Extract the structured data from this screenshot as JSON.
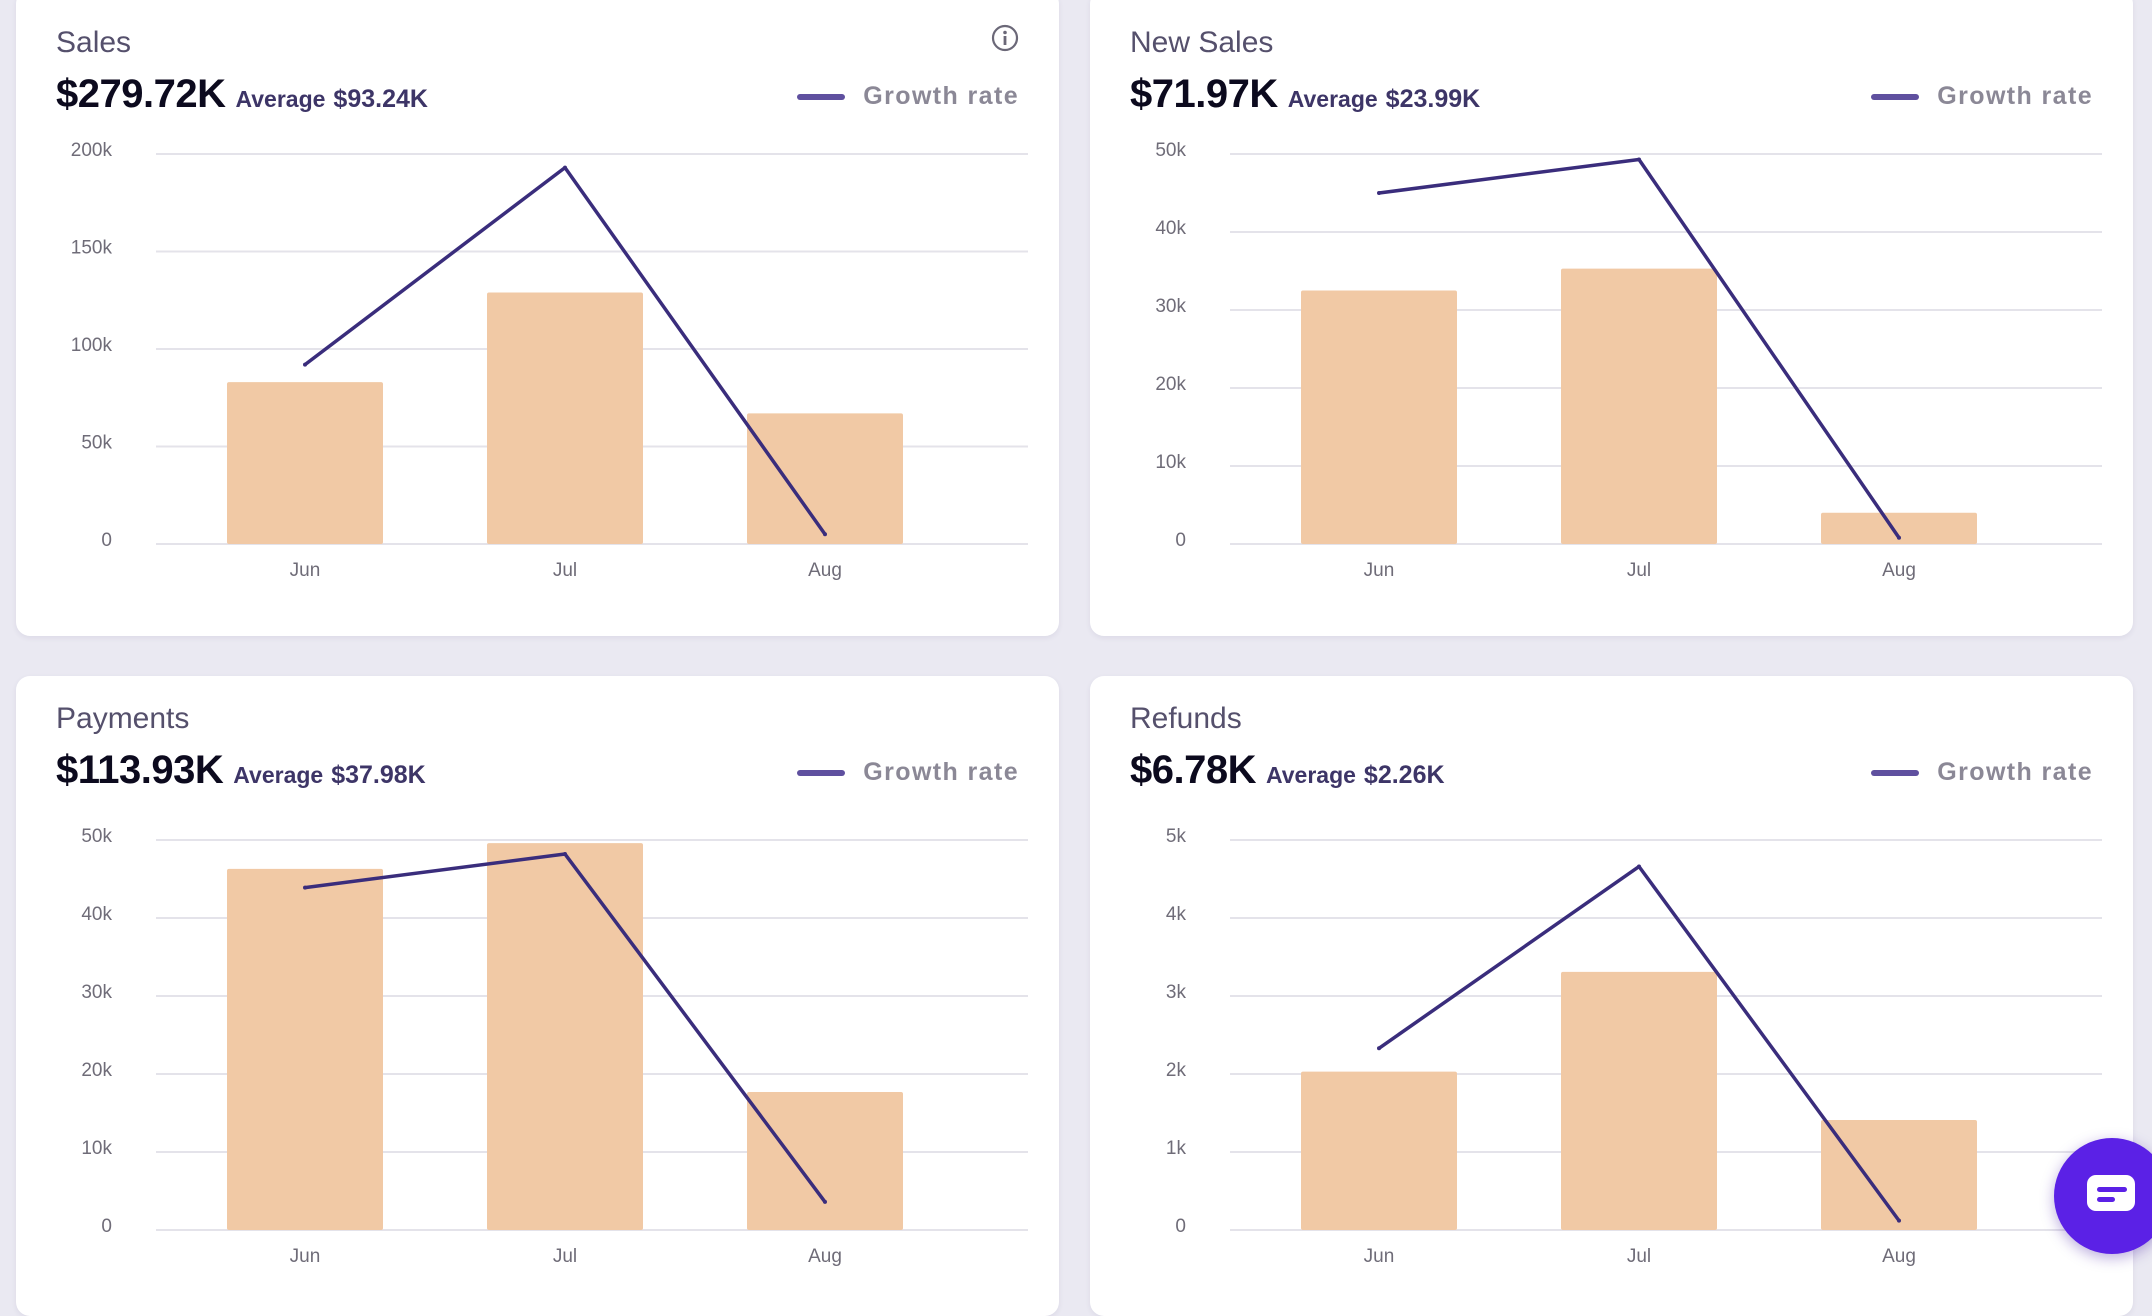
{
  "cards": [
    {
      "title": "Sales",
      "total": "$279.72K",
      "average_label": "Average",
      "average_value": "$93.24K",
      "legend": "Growth rate",
      "has_info_icon": true,
      "info_icon": "info-circle-icon"
    },
    {
      "title": "New Sales",
      "total": "$71.97K",
      "average_label": "Average",
      "average_value": "$23.99K",
      "legend": "Growth rate",
      "has_info_icon": false
    },
    {
      "title": "Payments",
      "total": "$113.93K",
      "average_label": "Average",
      "average_value": "$37.98K",
      "legend": "Growth rate",
      "has_info_icon": false
    },
    {
      "title": "Refunds",
      "total": "$6.78K",
      "average_label": "Average",
      "average_value": "$2.26K",
      "legend": "Growth rate",
      "has_info_icon": false
    }
  ],
  "chat_button": {
    "icon": "chat-bubble-icon"
  },
  "colors": {
    "bar": "#f1c9a5",
    "line": "#3a2d7c",
    "grid": "#e4e3ea",
    "tick": "#6f6c78",
    "chat": "#5b21e6"
  },
  "chart_data": [
    {
      "type": "bar",
      "categories": [
        "Jun",
        "Jul",
        "Aug"
      ],
      "ylim": [
        0,
        200000
      ],
      "yticks": [
        0,
        50000,
        100000,
        150000,
        200000
      ],
      "ytick_labels": [
        "0",
        "50k",
        "100k",
        "150k",
        "200k"
      ],
      "grid": true,
      "series": [
        {
          "name": "",
          "type": "bar",
          "values": [
            83000,
            129000,
            67000
          ]
        },
        {
          "name": "Growth rate",
          "type": "line",
          "values": [
            92000,
            193000,
            5000
          ]
        }
      ]
    },
    {
      "type": "bar",
      "categories": [
        "Jun",
        "Jul",
        "Aug"
      ],
      "ylim": [
        0,
        50000
      ],
      "yticks": [
        0,
        10000,
        20000,
        30000,
        40000,
        50000
      ],
      "ytick_labels": [
        "0",
        "10k",
        "20k",
        "30k",
        "40k",
        "50k"
      ],
      "grid": true,
      "series": [
        {
          "name": "",
          "type": "bar",
          "values": [
            32500,
            35300,
            4000
          ]
        },
        {
          "name": "Growth rate",
          "type": "line",
          "values": [
            45000,
            49300,
            800
          ]
        }
      ]
    },
    {
      "type": "bar",
      "categories": [
        "Jun",
        "Jul",
        "Aug"
      ],
      "ylim": [
        0,
        50000
      ],
      "yticks": [
        0,
        10000,
        20000,
        30000,
        40000,
        50000
      ],
      "ytick_labels": [
        "0",
        "10k",
        "20k",
        "30k",
        "40k",
        "50k"
      ],
      "grid": true,
      "series": [
        {
          "name": "",
          "type": "bar",
          "values": [
            46300,
            49600,
            17700
          ]
        },
        {
          "name": "Growth rate",
          "type": "line",
          "values": [
            43900,
            48200,
            3600
          ]
        }
      ]
    },
    {
      "type": "bar",
      "categories": [
        "Jun",
        "Jul",
        "Aug"
      ],
      "ylim": [
        0,
        5000
      ],
      "yticks": [
        0,
        1000,
        2000,
        3000,
        4000,
        5000
      ],
      "ytick_labels": [
        "0",
        "1k",
        "2k",
        "3k",
        "4k",
        "5k"
      ],
      "grid": true,
      "series": [
        {
          "name": "",
          "type": "bar",
          "values": [
            2030,
            3310,
            1410
          ]
        },
        {
          "name": "Growth rate",
          "type": "line",
          "values": [
            2330,
            4660,
            120
          ]
        }
      ]
    }
  ]
}
